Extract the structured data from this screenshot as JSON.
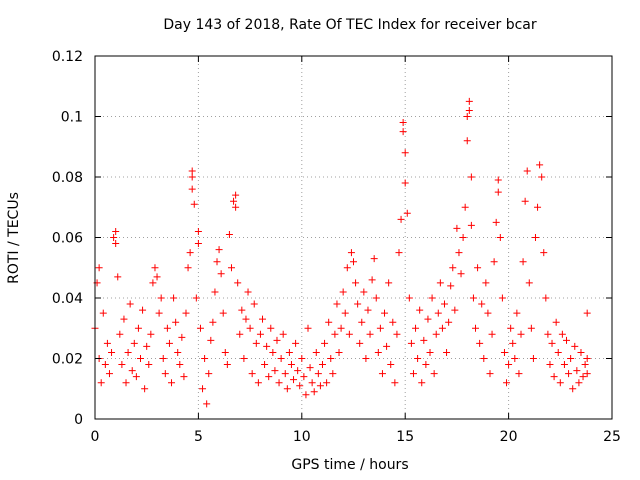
{
  "chart_data": {
    "type": "scatter",
    "title": "Day 143 of 2018, Rate Of TEC Index for receiver bcar",
    "xlabel": "GPS time / hours",
    "ylabel": "ROTI / TECUs",
    "xlim": [
      0,
      25
    ],
    "ylim": [
      0,
      0.12
    ],
    "x_ticks": [
      "0",
      "5",
      "10",
      "15",
      "20",
      "25"
    ],
    "y_ticks": [
      "0",
      "0.02",
      "0.04",
      "0.06",
      "0.08",
      "0.1",
      "0.12"
    ],
    "grid": true,
    "marker": "+",
    "color": "#ff0000",
    "series": [
      {
        "points": [
          [
            0.0,
            0.03
          ],
          [
            0.1,
            0.045
          ],
          [
            0.2,
            0.05
          ],
          [
            0.2,
            0.02
          ],
          [
            0.3,
            0.012
          ],
          [
            0.4,
            0.035
          ],
          [
            0.5,
            0.018
          ],
          [
            0.6,
            0.025
          ],
          [
            0.7,
            0.015
          ],
          [
            0.8,
            0.022
          ],
          [
            0.9,
            0.06
          ],
          [
            1.0,
            0.058
          ],
          [
            1.0,
            0.062
          ],
          [
            1.1,
            0.047
          ],
          [
            1.2,
            0.028
          ],
          [
            1.3,
            0.018
          ],
          [
            1.4,
            0.033
          ],
          [
            1.5,
            0.012
          ],
          [
            1.6,
            0.022
          ],
          [
            1.7,
            0.038
          ],
          [
            1.8,
            0.016
          ],
          [
            1.9,
            0.025
          ],
          [
            2.0,
            0.014
          ],
          [
            2.1,
            0.03
          ],
          [
            2.2,
            0.02
          ],
          [
            2.3,
            0.036
          ],
          [
            2.4,
            0.01
          ],
          [
            2.5,
            0.024
          ],
          [
            2.6,
            0.018
          ],
          [
            2.7,
            0.028
          ],
          [
            2.8,
            0.045
          ],
          [
            2.9,
            0.05
          ],
          [
            3.0,
            0.047
          ],
          [
            3.1,
            0.035
          ],
          [
            3.2,
            0.04
          ],
          [
            3.3,
            0.02
          ],
          [
            3.4,
            0.015
          ],
          [
            3.5,
            0.03
          ],
          [
            3.6,
            0.025
          ],
          [
            3.7,
            0.012
          ],
          [
            3.8,
            0.04
          ],
          [
            3.9,
            0.032
          ],
          [
            4.0,
            0.022
          ],
          [
            4.1,
            0.018
          ],
          [
            4.2,
            0.027
          ],
          [
            4.3,
            0.014
          ],
          [
            4.4,
            0.035
          ],
          [
            4.5,
            0.05
          ],
          [
            4.6,
            0.055
          ],
          [
            4.7,
            0.08
          ],
          [
            4.7,
            0.076
          ],
          [
            4.7,
            0.082
          ],
          [
            4.8,
            0.071
          ],
          [
            4.9,
            0.04
          ],
          [
            5.0,
            0.058
          ],
          [
            5.0,
            0.062
          ],
          [
            5.1,
            0.03
          ],
          [
            5.2,
            0.01
          ],
          [
            5.3,
            0.02
          ],
          [
            5.4,
            0.005
          ],
          [
            5.5,
            0.015
          ],
          [
            5.6,
            0.026
          ],
          [
            5.7,
            0.032
          ],
          [
            5.8,
            0.042
          ],
          [
            5.9,
            0.052
          ],
          [
            6.0,
            0.056
          ],
          [
            6.1,
            0.048
          ],
          [
            6.2,
            0.035
          ],
          [
            6.3,
            0.022
          ],
          [
            6.4,
            0.018
          ],
          [
            6.5,
            0.061
          ],
          [
            6.6,
            0.05
          ],
          [
            6.7,
            0.072
          ],
          [
            6.8,
            0.07
          ],
          [
            6.8,
            0.074
          ],
          [
            6.9,
            0.045
          ],
          [
            7.0,
            0.028
          ],
          [
            7.1,
            0.036
          ],
          [
            7.2,
            0.02
          ],
          [
            7.3,
            0.033
          ],
          [
            7.4,
            0.042
          ],
          [
            7.5,
            0.03
          ],
          [
            7.6,
            0.015
          ],
          [
            7.7,
            0.038
          ],
          [
            7.8,
            0.025
          ],
          [
            7.9,
            0.012
          ],
          [
            8.0,
            0.028
          ],
          [
            8.1,
            0.033
          ],
          [
            8.2,
            0.018
          ],
          [
            8.3,
            0.024
          ],
          [
            8.4,
            0.014
          ],
          [
            8.5,
            0.03
          ],
          [
            8.6,
            0.022
          ],
          [
            8.7,
            0.016
          ],
          [
            8.8,
            0.026
          ],
          [
            8.9,
            0.012
          ],
          [
            9.0,
            0.02
          ],
          [
            9.1,
            0.028
          ],
          [
            9.2,
            0.015
          ],
          [
            9.3,
            0.01
          ],
          [
            9.4,
            0.022
          ],
          [
            9.5,
            0.018
          ],
          [
            9.6,
            0.013
          ],
          [
            9.7,
            0.025
          ],
          [
            9.8,
            0.016
          ],
          [
            9.9,
            0.011
          ],
          [
            10.0,
            0.02
          ],
          [
            10.1,
            0.014
          ],
          [
            10.2,
            0.008
          ],
          [
            10.3,
            0.03
          ],
          [
            10.4,
            0.017
          ],
          [
            10.5,
            0.012
          ],
          [
            10.6,
            0.009
          ],
          [
            10.7,
            0.022
          ],
          [
            10.8,
            0.015
          ],
          [
            10.9,
            0.011
          ],
          [
            11.0,
            0.018
          ],
          [
            11.1,
            0.025
          ],
          [
            11.2,
            0.012
          ],
          [
            11.3,
            0.032
          ],
          [
            11.4,
            0.02
          ],
          [
            11.5,
            0.015
          ],
          [
            11.6,
            0.028
          ],
          [
            11.7,
            0.038
          ],
          [
            11.8,
            0.022
          ],
          [
            11.9,
            0.03
          ],
          [
            12.0,
            0.042
          ],
          [
            12.1,
            0.035
          ],
          [
            12.2,
            0.05
          ],
          [
            12.3,
            0.028
          ],
          [
            12.4,
            0.055
          ],
          [
            12.5,
            0.052
          ],
          [
            12.6,
            0.045
          ],
          [
            12.7,
            0.038
          ],
          [
            12.8,
            0.025
          ],
          [
            12.9,
            0.032
          ],
          [
            13.0,
            0.042
          ],
          [
            13.1,
            0.02
          ],
          [
            13.2,
            0.036
          ],
          [
            13.3,
            0.028
          ],
          [
            13.4,
            0.046
          ],
          [
            13.5,
            0.053
          ],
          [
            13.6,
            0.04
          ],
          [
            13.7,
            0.022
          ],
          [
            13.8,
            0.03
          ],
          [
            13.9,
            0.015
          ],
          [
            14.0,
            0.035
          ],
          [
            14.1,
            0.024
          ],
          [
            14.2,
            0.045
          ],
          [
            14.3,
            0.018
          ],
          [
            14.4,
            0.032
          ],
          [
            14.5,
            0.012
          ],
          [
            14.6,
            0.028
          ],
          [
            14.7,
            0.055
          ],
          [
            14.8,
            0.066
          ],
          [
            14.9,
            0.095
          ],
          [
            14.9,
            0.098
          ],
          [
            15.0,
            0.088
          ],
          [
            15.0,
            0.078
          ],
          [
            15.1,
            0.068
          ],
          [
            15.2,
            0.04
          ],
          [
            15.3,
            0.025
          ],
          [
            15.4,
            0.015
          ],
          [
            15.5,
            0.03
          ],
          [
            15.6,
            0.02
          ],
          [
            15.7,
            0.036
          ],
          [
            15.8,
            0.012
          ],
          [
            15.9,
            0.026
          ],
          [
            16.0,
            0.018
          ],
          [
            16.1,
            0.033
          ],
          [
            16.2,
            0.022
          ],
          [
            16.3,
            0.04
          ],
          [
            16.4,
            0.015
          ],
          [
            16.5,
            0.028
          ],
          [
            16.6,
            0.035
          ],
          [
            16.7,
            0.045
          ],
          [
            16.8,
            0.03
          ],
          [
            16.9,
            0.038
          ],
          [
            17.0,
            0.022
          ],
          [
            17.1,
            0.032
          ],
          [
            17.2,
            0.044
          ],
          [
            17.3,
            0.05
          ],
          [
            17.4,
            0.036
          ],
          [
            17.5,
            0.063
          ],
          [
            17.6,
            0.055
          ],
          [
            17.7,
            0.048
          ],
          [
            17.8,
            0.06
          ],
          [
            17.9,
            0.07
          ],
          [
            18.0,
            0.092
          ],
          [
            18.0,
            0.1
          ],
          [
            18.1,
            0.105
          ],
          [
            18.1,
            0.102
          ],
          [
            18.2,
            0.08
          ],
          [
            18.2,
            0.064
          ],
          [
            18.3,
            0.04
          ],
          [
            18.4,
            0.03
          ],
          [
            18.5,
            0.05
          ],
          [
            18.6,
            0.025
          ],
          [
            18.7,
            0.038
          ],
          [
            18.8,
            0.02
          ],
          [
            18.9,
            0.045
          ],
          [
            19.0,
            0.035
          ],
          [
            19.1,
            0.015
          ],
          [
            19.2,
            0.028
          ],
          [
            19.3,
            0.052
          ],
          [
            19.4,
            0.065
          ],
          [
            19.5,
            0.079
          ],
          [
            19.5,
            0.075
          ],
          [
            19.6,
            0.06
          ],
          [
            19.7,
            0.04
          ],
          [
            19.8,
            0.022
          ],
          [
            19.9,
            0.012
          ],
          [
            20.0,
            0.018
          ],
          [
            20.1,
            0.03
          ],
          [
            20.2,
            0.025
          ],
          [
            20.3,
            0.02
          ],
          [
            20.4,
            0.035
          ],
          [
            20.5,
            0.015
          ],
          [
            20.6,
            0.028
          ],
          [
            20.7,
            0.052
          ],
          [
            20.8,
            0.072
          ],
          [
            20.9,
            0.082
          ],
          [
            21.0,
            0.045
          ],
          [
            21.1,
            0.03
          ],
          [
            21.2,
            0.02
          ],
          [
            21.3,
            0.06
          ],
          [
            21.4,
            0.07
          ],
          [
            21.5,
            0.084
          ],
          [
            21.6,
            0.08
          ],
          [
            21.7,
            0.055
          ],
          [
            21.8,
            0.04
          ],
          [
            21.9,
            0.028
          ],
          [
            22.0,
            0.018
          ],
          [
            22.1,
            0.025
          ],
          [
            22.2,
            0.014
          ],
          [
            22.3,
            0.032
          ],
          [
            22.4,
            0.022
          ],
          [
            22.5,
            0.012
          ],
          [
            22.6,
            0.028
          ],
          [
            22.7,
            0.018
          ],
          [
            22.8,
            0.026
          ],
          [
            22.9,
            0.015
          ],
          [
            23.0,
            0.02
          ],
          [
            23.1,
            0.01
          ],
          [
            23.2,
            0.024
          ],
          [
            23.3,
            0.016
          ],
          [
            23.4,
            0.012
          ],
          [
            23.5,
            0.022
          ],
          [
            23.6,
            0.014
          ],
          [
            23.7,
            0.018
          ],
          [
            23.8,
            0.035
          ],
          [
            23.8,
            0.02
          ],
          [
            23.8,
            0.015
          ]
        ]
      }
    ]
  }
}
